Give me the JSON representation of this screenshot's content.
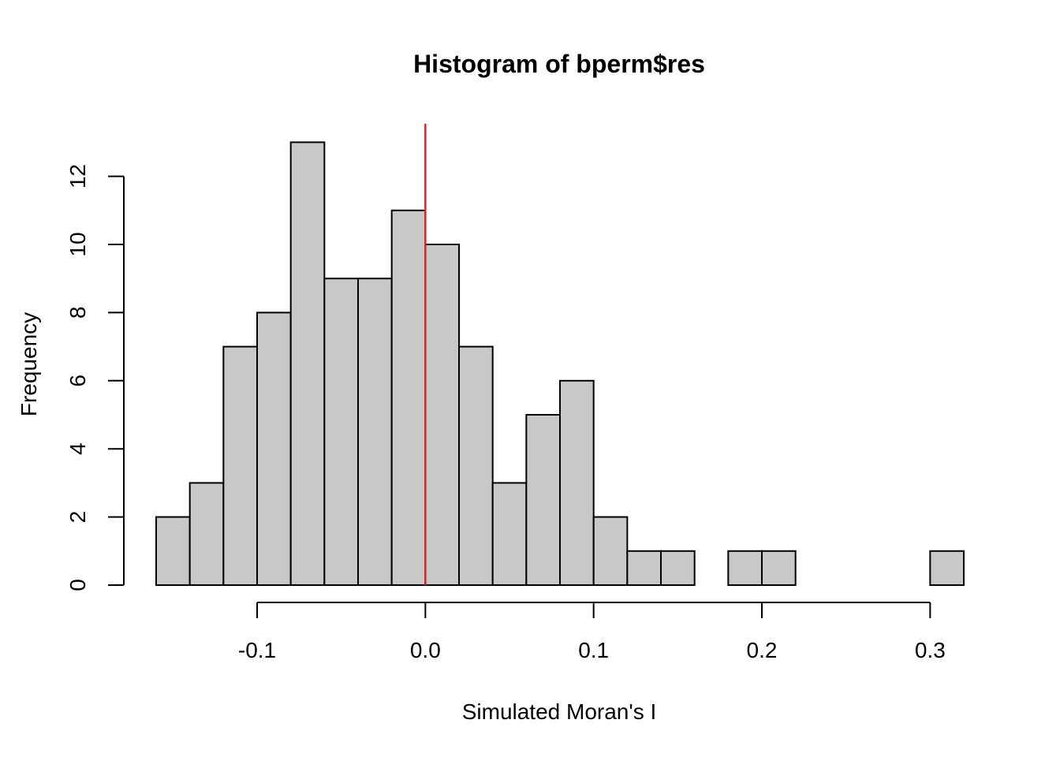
{
  "chart_data": {
    "type": "bar",
    "title": "Histogram of bperm$res",
    "xlabel": "Simulated Moran's I",
    "ylabel": "Frequency",
    "bin_edges": [
      -0.16,
      -0.14,
      -0.12,
      -0.1,
      -0.08,
      -0.06,
      -0.04,
      -0.02,
      0.0,
      0.02,
      0.04,
      0.06,
      0.08,
      0.1,
      0.12,
      0.14,
      0.16,
      0.18,
      0.2,
      0.22,
      0.24,
      0.26,
      0.28,
      0.3,
      0.32
    ],
    "values": [
      2,
      3,
      7,
      8,
      13,
      9,
      9,
      11,
      10,
      7,
      3,
      5,
      6,
      2,
      1,
      1,
      0,
      1,
      1,
      0,
      0,
      0,
      0,
      1
    ],
    "xlim": [
      -0.16,
      0.32
    ],
    "ylim": [
      0,
      13.5
    ],
    "x_ticks": [
      -0.1,
      0.0,
      0.1,
      0.2,
      0.3
    ],
    "x_tick_labels": [
      "-0.1",
      "0.0",
      "0.1",
      "0.2",
      "0.3"
    ],
    "y_ticks": [
      0,
      2,
      4,
      6,
      8,
      10,
      12
    ],
    "y_tick_labels": [
      "0",
      "2",
      "4",
      "6",
      "8",
      "10",
      "12"
    ],
    "reference_line": {
      "x": 0.0,
      "color": "#d62728"
    },
    "bar_color": "#c8c8c8",
    "grid": false
  }
}
